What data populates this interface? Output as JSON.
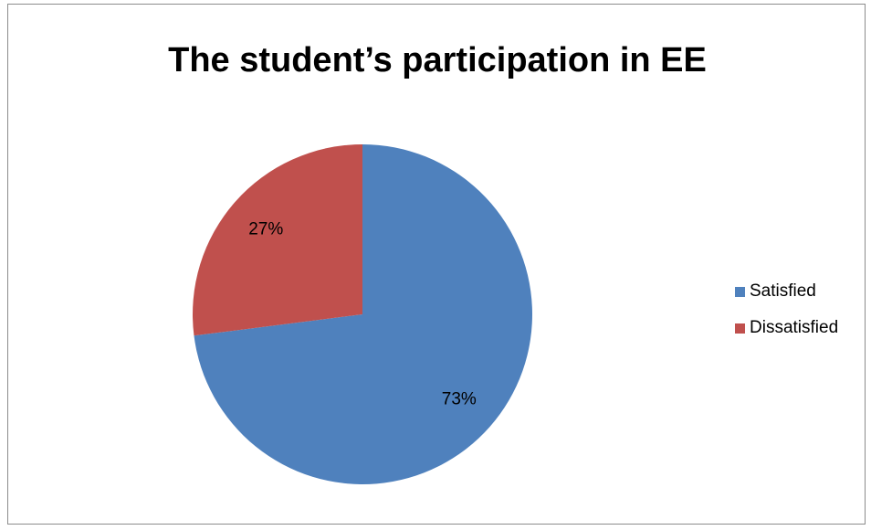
{
  "chart_data": {
    "type": "pie",
    "title": "The student’s participation in EE",
    "categories": [
      "Satisfied",
      "Dissatisfied"
    ],
    "values": [
      73,
      27
    ],
    "data_labels": [
      "73%",
      "27%"
    ],
    "colors": [
      "#4f81bd",
      "#c0504d"
    ],
    "legend_position": "right",
    "start_angle_deg": 0,
    "direction": "clockwise"
  }
}
